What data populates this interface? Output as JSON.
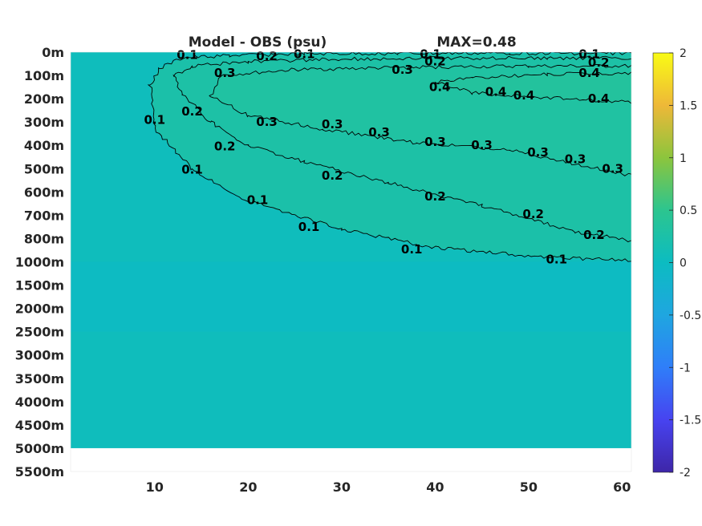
{
  "chart_data": {
    "type": "heatmap",
    "title": "Model - OBS (psu)",
    "max_label": "MAX=0.48",
    "xlabel": "",
    "ylabel": "",
    "x_ticks": [
      10,
      20,
      30,
      40,
      50,
      60
    ],
    "xlim": [
      1,
      61
    ],
    "y_ticks": [
      "0m",
      "100m",
      "200m",
      "300m",
      "400m",
      "500m",
      "600m",
      "700m",
      "800m",
      "1000m",
      "1500m",
      "2000m",
      "2500m",
      "3000m",
      "3500m",
      "4000m",
      "4500m",
      "5000m",
      "5500m"
    ],
    "colorbar": {
      "clim": [
        -2,
        2
      ],
      "ticks": [
        "2",
        "1.5",
        "1",
        "0.5",
        "0",
        "-0.5",
        "-1",
        "-1.5",
        "-2"
      ],
      "tick_values": [
        2,
        1.5,
        1,
        0.5,
        0,
        -0.5,
        -1,
        -1.5,
        -2
      ]
    },
    "contour_levels": [
      0.1,
      0.2,
      0.3,
      0.4
    ],
    "contours": [
      {
        "level": 0.1,
        "label": "0.1",
        "x": [
          61,
          52,
          40,
          30,
          20,
          14,
          10,
          9.5,
          10.5,
          13,
          18,
          26,
          36,
          48,
          58,
          61
        ],
        "y": [
          990,
          960,
          880,
          760,
          640,
          500,
          330,
          140,
          70,
          25,
          15,
          8,
          6,
          5,
          5,
          5
        ]
      },
      {
        "level": 0.2,
        "label": "0.2",
        "x": [
          61,
          55,
          45,
          35,
          26,
          20,
          16,
          13,
          12,
          14,
          20,
          30,
          40,
          52,
          61
        ],
        "y": [
          820,
          770,
          660,
          560,
          470,
          400,
          300,
          180,
          100,
          60,
          40,
          30,
          25,
          25,
          25
        ]
      },
      {
        "level": 0.3,
        "label": "0.3",
        "x": [
          61,
          55,
          48,
          38,
          28,
          20,
          16,
          17,
          25,
          38,
          50,
          61
        ],
        "y": [
          530,
          480,
          420,
          390,
          330,
          270,
          190,
          100,
          75,
          65,
          60,
          60
        ]
      },
      {
        "level": 0.4,
        "label": "0.4",
        "x": [
          61,
          52,
          44,
          40,
          44,
          52,
          61
        ],
        "y": [
          215,
          195,
          175,
          130,
          110,
          95,
          90
        ]
      }
    ],
    "contour_label_positions": [
      {
        "label": "0.1",
        "x": 13.5,
        "y": 12
      },
      {
        "label": "0.2",
        "x": 22,
        "y": 17
      },
      {
        "label": "0.1",
        "x": 26,
        "y": 8
      },
      {
        "label": "0.1",
        "x": 39.5,
        "y": 8
      },
      {
        "label": "0.1",
        "x": 56.5,
        "y": 8
      },
      {
        "label": "0.3",
        "x": 17.5,
        "y": 90
      },
      {
        "label": "0.3",
        "x": 36.5,
        "y": 75
      },
      {
        "label": "0.2",
        "x": 40,
        "y": 40
      },
      {
        "label": "0.2",
        "x": 57.5,
        "y": 45
      },
      {
        "label": "0.4",
        "x": 56.5,
        "y": 90
      },
      {
        "label": "0.4",
        "x": 40.5,
        "y": 150
      },
      {
        "label": "0.4",
        "x": 46.5,
        "y": 170
      },
      {
        "label": "0.4",
        "x": 49.5,
        "y": 185
      },
      {
        "label": "0.4",
        "x": 57.5,
        "y": 200
      },
      {
        "label": "0.1",
        "x": 10,
        "y": 290
      },
      {
        "label": "0.2",
        "x": 14,
        "y": 255
      },
      {
        "label": "0.3",
        "x": 22,
        "y": 300
      },
      {
        "label": "0.3",
        "x": 29,
        "y": 310
      },
      {
        "label": "0.3",
        "x": 34,
        "y": 345
      },
      {
        "label": "0.3",
        "x": 40,
        "y": 385
      },
      {
        "label": "0.3",
        "x": 45,
        "y": 400
      },
      {
        "label": "0.3",
        "x": 51,
        "y": 430
      },
      {
        "label": "0.3",
        "x": 55,
        "y": 460
      },
      {
        "label": "0.3",
        "x": 59,
        "y": 500
      },
      {
        "label": "0.2",
        "x": 17.5,
        "y": 405
      },
      {
        "label": "0.2",
        "x": 29,
        "y": 530
      },
      {
        "label": "0.2",
        "x": 40,
        "y": 620
      },
      {
        "label": "0.2",
        "x": 50.5,
        "y": 695
      },
      {
        "label": "0.2",
        "x": 57,
        "y": 785
      },
      {
        "label": "0.1",
        "x": 14,
        "y": 505
      },
      {
        "label": "0.1",
        "x": 21,
        "y": 635
      },
      {
        "label": "0.1",
        "x": 26.5,
        "y": 750
      },
      {
        "label": "0.1",
        "x": 37.5,
        "y": 895
      },
      {
        "label": "0.1",
        "x": 53,
        "y": 980
      }
    ],
    "fill_regions": [
      {
        "value": 0.24,
        "x": [
          61,
          52,
          40,
          30,
          20,
          14,
          10,
          9.5,
          10.5,
          13,
          18,
          26,
          36,
          48,
          58,
          61
        ],
        "y": [
          990,
          960,
          880,
          760,
          640,
          500,
          330,
          140,
          70,
          25,
          15,
          8,
          6,
          5,
          5,
          5
        ]
      },
      {
        "value": 0.27,
        "x": [
          61,
          55,
          45,
          35,
          26,
          20,
          16,
          13,
          12,
          14,
          20,
          30,
          40,
          52,
          61
        ],
        "y": [
          820,
          770,
          660,
          560,
          470,
          400,
          300,
          180,
          100,
          60,
          40,
          30,
          25,
          25,
          25
        ]
      },
      {
        "value": 0.31,
        "x": [
          61,
          55,
          48,
          38,
          28,
          20,
          16,
          17,
          25,
          38,
          50,
          61
        ],
        "y": [
          530,
          480,
          420,
          390,
          330,
          270,
          190,
          100,
          75,
          65,
          60,
          60
        ]
      },
      {
        "value": 0.36,
        "x": [
          61,
          52,
          44,
          40,
          44,
          52,
          61
        ],
        "y": [
          215,
          195,
          175,
          130,
          110,
          95,
          90
        ]
      }
    ],
    "background_value": 0.05,
    "deep_band_value": -0.02,
    "deep_band_range": [
      1000,
      2500
    ],
    "no_data_below": 5000,
    "grid": false,
    "legend": "colorbar-right"
  }
}
